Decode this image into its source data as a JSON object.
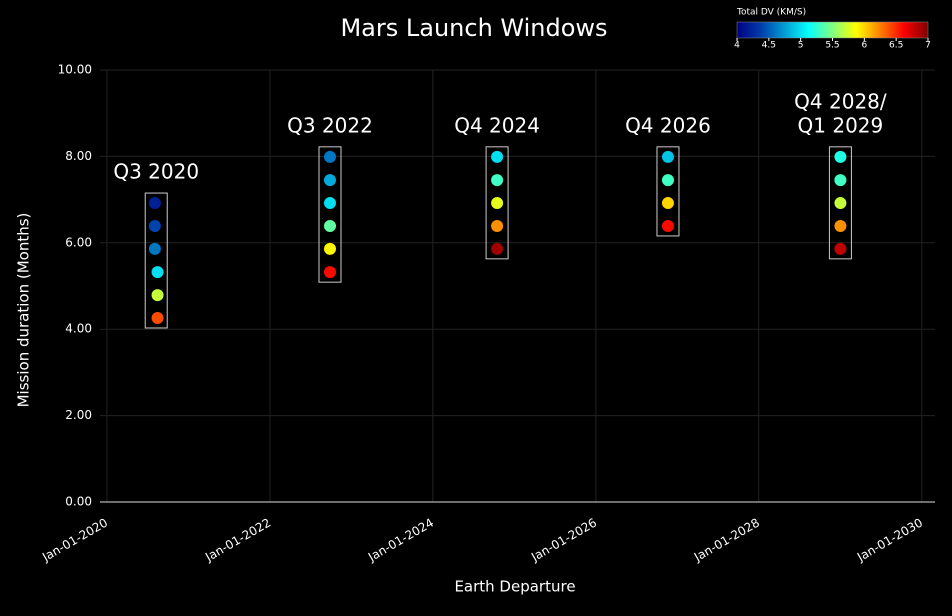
{
  "chart_data": {
    "type": "scatter",
    "title": "Mars Launch Windows",
    "x_label": "Earth Departure",
    "y_label": "Mission duration (Months)",
    "xlim": [
      "2019-12-01",
      "2030-03-01"
    ],
    "xticks": [
      {
        "value": "2020-01-01",
        "label": "Jan-01-2020"
      },
      {
        "value": "2022-01-01",
        "label": "Jan-01-2022"
      },
      {
        "value": "2024-01-01",
        "label": "Jan-01-2024"
      },
      {
        "value": "2026-01-01",
        "label": "Jan-01-2026"
      },
      {
        "value": "2028-01-01",
        "label": "Jan-01-2028"
      },
      {
        "value": "2030-01-01",
        "label": "Jan-01-2030"
      }
    ],
    "ylim": [
      0,
      10
    ],
    "yticks": [
      {
        "value": 0,
        "label": "0.00"
      },
      {
        "value": 2,
        "label": "2.00"
      },
      {
        "value": 4,
        "label": "4.00"
      },
      {
        "value": 6,
        "label": "6.00"
      },
      {
        "value": 8,
        "label": "8.00"
      },
      {
        "value": 10,
        "label": "10.00"
      }
    ],
    "grid": true,
    "colorscale": "Jet",
    "colorbar": {
      "title": "Total DV (KM/S)",
      "lim": [
        4,
        7
      ],
      "ticks": [
        4,
        4.5,
        5,
        5.5,
        6,
        6.5,
        7
      ]
    },
    "windows": [
      {
        "label": [
          "Q3 2020"
        ],
        "x": [
          "2020-08-03",
          "2020-08-03",
          "2020-08-03",
          "2020-08-15",
          "2020-08-15",
          "2020-08-15"
        ],
        "y": [
          6.92,
          6.39,
          5.86,
          5.32,
          4.79,
          4.26
        ],
        "dv": [
          4.2,
          4.4,
          4.6,
          5.0,
          5.7,
          6.4
        ]
      },
      {
        "label": [
          "Q3 2022"
        ],
        "x": [
          "2022-09-27",
          "2022-09-27",
          "2022-09-27",
          "2022-09-27",
          "2022-09-27",
          "2022-09-27"
        ],
        "y": [
          7.99,
          7.45,
          6.92,
          6.39,
          5.86,
          5.32
        ],
        "dv": [
          4.6,
          4.8,
          5.0,
          5.4,
          5.9,
          6.6
        ]
      },
      {
        "label": [
          "Q4 2024"
        ],
        "x": [
          "2024-10-15",
          "2024-10-15",
          "2024-10-15",
          "2024-10-15",
          "2024-10-15"
        ],
        "y": [
          7.99,
          7.45,
          6.92,
          6.39,
          5.86
        ],
        "dv": [
          5.0,
          5.3,
          5.8,
          6.2,
          6.9
        ]
      },
      {
        "label": [
          "Q4 2026"
        ],
        "x": [
          "2026-11-20",
          "2026-11-20",
          "2026-11-20",
          "2026-11-20"
        ],
        "y": [
          7.99,
          7.45,
          6.92,
          6.39
        ],
        "dv": [
          4.9,
          5.3,
          6.0,
          6.6
        ]
      },
      {
        "label": [
          "Q4 2028/",
          "Q1 2029"
        ],
        "x": [
          "2029-01-01",
          "2029-01-01",
          "2029-01-01",
          "2029-01-01",
          "2029-01-01"
        ],
        "y": [
          7.99,
          7.45,
          6.92,
          6.39,
          5.86
        ],
        "dv": [
          5.2,
          5.3,
          5.7,
          6.2,
          6.8
        ]
      }
    ]
  }
}
